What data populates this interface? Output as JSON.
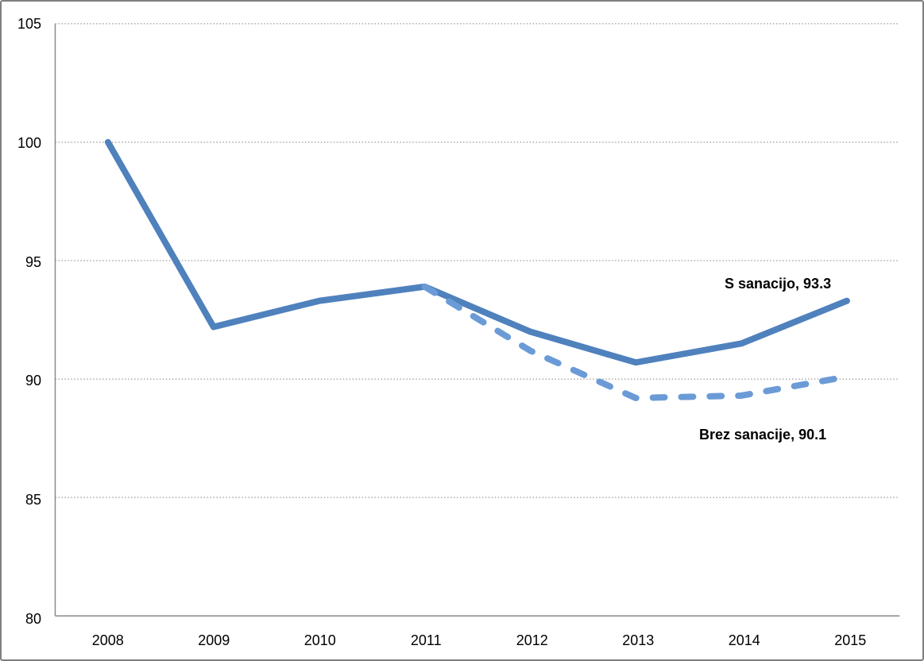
{
  "chart_data": {
    "type": "line",
    "title": "",
    "categories": [
      "2008",
      "2009",
      "2010",
      "2011",
      "2012",
      "2013",
      "2014",
      "2015"
    ],
    "series": [
      {
        "name": "S sanacijo",
        "values": [
          100.0,
          92.2,
          93.3,
          93.9,
          92.0,
          90.7,
          91.5,
          93.3
        ],
        "style": "solid",
        "color": "#4F81BD"
      },
      {
        "name": "Brez sanacije",
        "values": [
          null,
          null,
          null,
          93.9,
          91.2,
          89.2,
          89.3,
          90.1
        ],
        "style": "dashed",
        "color": "#6B9BD7"
      }
    ],
    "ylim": [
      80,
      105
    ],
    "y_tick_step": 5,
    "y_ticks": [
      105,
      100,
      95,
      90,
      85,
      80
    ],
    "grid": "horizontal-dotted",
    "legend_position": "none",
    "annotations": [
      {
        "text": "S sanacijo, 93.3",
        "attached_to": "S sanacijo"
      },
      {
        "text": "Brez sanacije, 90.1",
        "attached_to": "Brez sanacije"
      }
    ]
  },
  "annotations": {
    "series1_label": "S sanacijo, 93.3",
    "series2_label": "Brez sanacije, 90.1"
  },
  "colors": {
    "solid_line": "#4F81BD",
    "dashed_line": "#6B9BD7",
    "gridline": "#808080",
    "axis_line": "#8a8a8a",
    "frame_border": "#7F7F7F",
    "text": "#000000",
    "background": "#FFFFFF"
  }
}
